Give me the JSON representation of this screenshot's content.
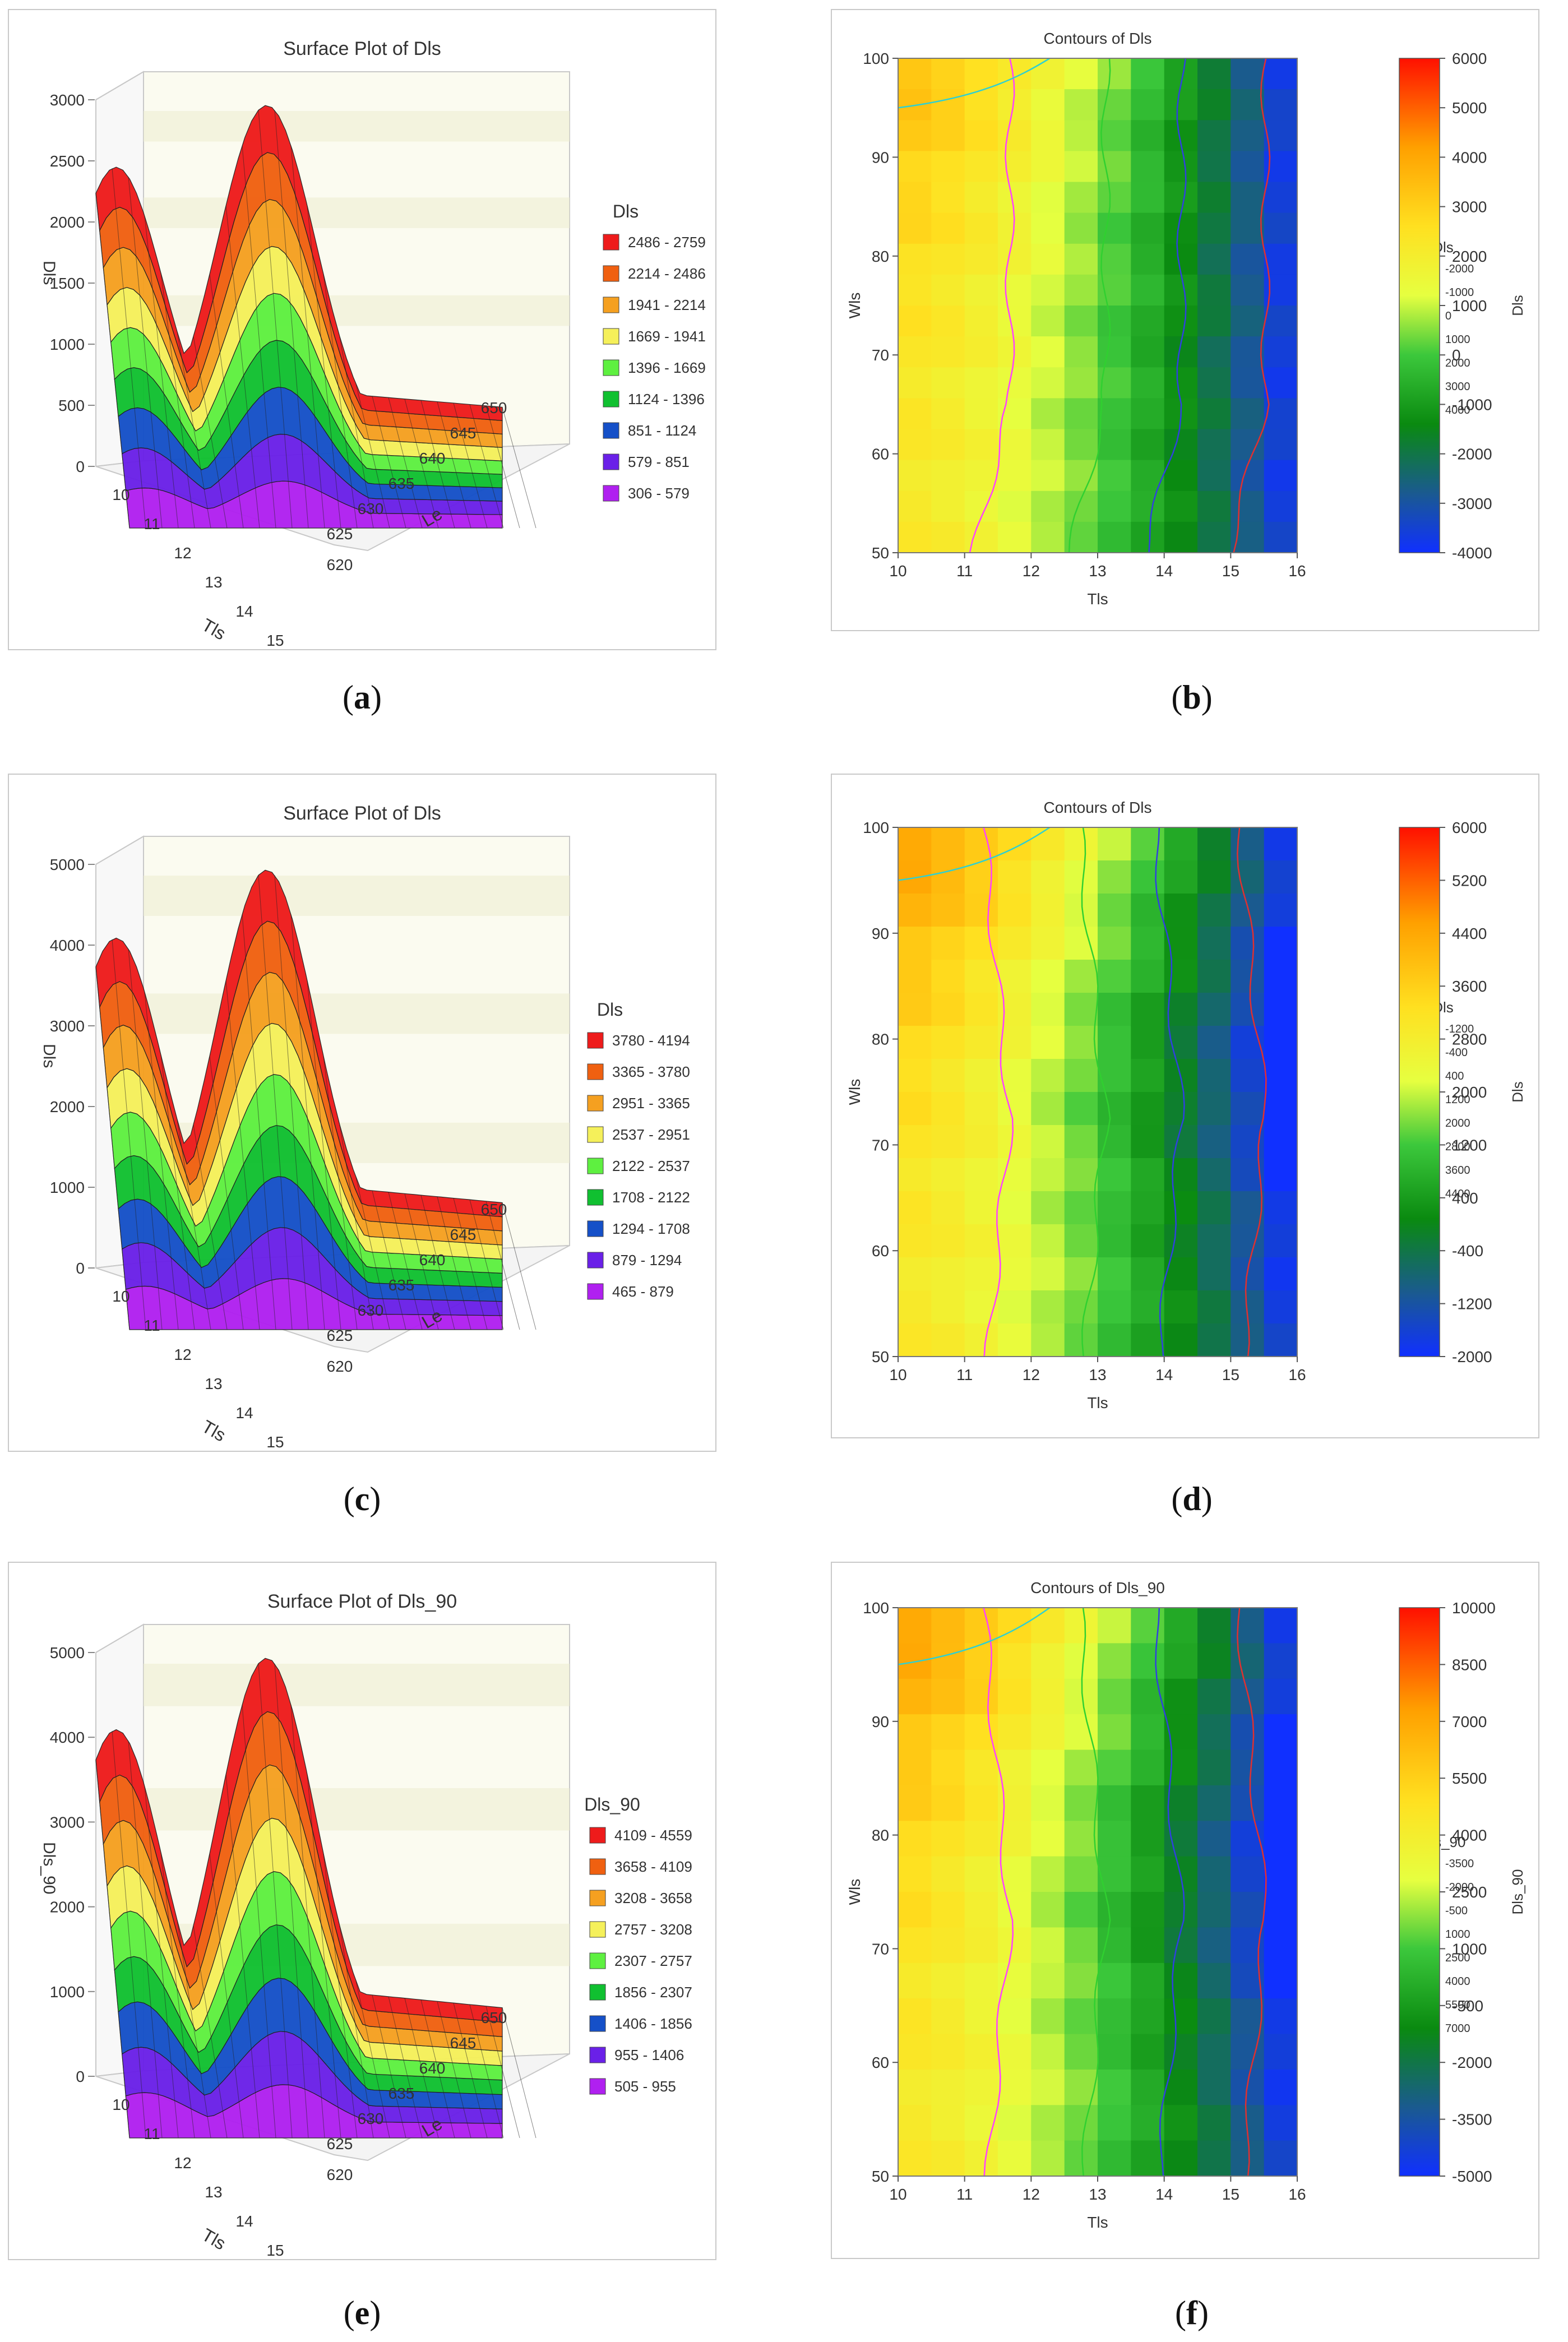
{
  "captions": {
    "a": "a",
    "b": "b",
    "c": "c",
    "d": "d",
    "e": "e",
    "f": "f"
  },
  "chart_data": [
    {
      "id": "a",
      "type": "surface3d",
      "title": "Surface Plot of Dls",
      "zlabel": "Dls",
      "xlabel": "Tls",
      "ylabel": "Le",
      "zticks": [
        "0",
        "500",
        "1000",
        "1500",
        "2000",
        "2500",
        "3000"
      ],
      "xticks": [
        "10",
        "11",
        "12",
        "13",
        "14",
        "15"
      ],
      "yticks": [
        "625",
        "630",
        "635",
        "640",
        "645",
        "650"
      ],
      "corner_label": "620",
      "legend_title": "Dls",
      "legend": [
        "2486 - 2759",
        "2214 - 2486",
        "1941 - 2214",
        "1669 - 1941",
        "1396 - 1669",
        "1124 - 1396",
        "851 - 1124",
        "579 - 851",
        "306 - 579"
      ],
      "legend_colors": [
        "#ee1b1b",
        "#f06010",
        "#f5a020",
        "#f5f05a",
        "#5ef040",
        "#10c030",
        "#1550c8",
        "#6a20e8",
        "#b020f0"
      ]
    },
    {
      "id": "b",
      "type": "contour",
      "title": "Contours of Dls",
      "xlabel": "Tls",
      "ylabel": "Wls",
      "cbar_label": "Dls",
      "xticks": [
        "10",
        "11",
        "12",
        "13",
        "14",
        "15",
        "16"
      ],
      "yticks": [
        "50",
        "60",
        "70",
        "80",
        "90",
        "100"
      ],
      "cbar_ticks": [
        "6000",
        "5000",
        "4000",
        "3000",
        "2000",
        "1000",
        "0",
        "-1000",
        "-2000",
        "-3000",
        "-4000"
      ],
      "legend_title": "Dls",
      "legend": [
        "-2000",
        "-1000",
        "0",
        "1000",
        "2000",
        "3000",
        "4000"
      ],
      "legend_colors": [
        "#e03030",
        "#3040e0",
        "#30d030",
        "#ff40ff",
        "#f0a030",
        "#f0f040",
        "#30d0d0"
      ]
    },
    {
      "id": "c",
      "type": "surface3d",
      "title": "Surface Plot of Dls",
      "zlabel": "Dls",
      "xlabel": "Tls",
      "ylabel": "Le",
      "zticks": [
        "0",
        "1000",
        "2000",
        "3000",
        "4000",
        "5000"
      ],
      "xticks": [
        "10",
        "11",
        "12",
        "13",
        "14",
        "15"
      ],
      "yticks": [
        "625",
        "630",
        "635",
        "640",
        "645",
        "650"
      ],
      "corner_label": "620",
      "legend_title": "Dls",
      "legend": [
        "3780 - 4194",
        "3365 - 3780",
        "2951 - 3365",
        "2537 - 2951",
        "2122 - 2537",
        "1708 - 2122",
        "1294 - 1708",
        "879 - 1294",
        "465 - 879"
      ],
      "legend_colors": [
        "#ee1b1b",
        "#f06010",
        "#f5a020",
        "#f5f05a",
        "#5ef040",
        "#10c030",
        "#1550c8",
        "#6a20e8",
        "#b020f0"
      ]
    },
    {
      "id": "d",
      "type": "contour",
      "title": "Contours of Dls",
      "xlabel": "Tls",
      "ylabel": "Wls",
      "cbar_label": "Dls",
      "xticks": [
        "10",
        "11",
        "12",
        "13",
        "14",
        "15",
        "16"
      ],
      "yticks": [
        "50",
        "60",
        "70",
        "80",
        "90",
        "100"
      ],
      "cbar_ticks": [
        "6000",
        "5200",
        "4400",
        "3600",
        "2800",
        "2000",
        "1200",
        "400",
        "-400",
        "-1200",
        "-2000"
      ],
      "legend_title": "Dls",
      "legend": [
        "-1200",
        "-400",
        "400",
        "1200",
        "2000",
        "2800",
        "3600",
        "4400"
      ],
      "legend_colors": [
        "#e03030",
        "#3040e0",
        "#30d030",
        "#ff40ff",
        "#f0a030",
        "#f0f040",
        "#30d0d0",
        "#ff60ff"
      ]
    },
    {
      "id": "e",
      "type": "surface3d",
      "title": "Surface Plot of Dls_90",
      "zlabel": "Dls_90",
      "xlabel": "Tls",
      "ylabel": "Le",
      "zticks": [
        "0",
        "1000",
        "2000",
        "3000",
        "4000",
        "5000"
      ],
      "xticks": [
        "10",
        "11",
        "12",
        "13",
        "14",
        "15"
      ],
      "yticks": [
        "625",
        "630",
        "635",
        "640",
        "645",
        "650"
      ],
      "corner_label": "620",
      "legend_title": "Dls_90",
      "legend": [
        "4109 - 4559",
        "3658 - 4109",
        "3208 - 3658",
        "2757 - 3208",
        "2307 - 2757",
        "1856 - 2307",
        "1406 - 1856",
        "955 - 1406",
        "505 - 955"
      ],
      "legend_colors": [
        "#ee1b1b",
        "#f06010",
        "#f5a020",
        "#f5f05a",
        "#5ef040",
        "#10c030",
        "#1550c8",
        "#6a20e8",
        "#b020f0"
      ]
    },
    {
      "id": "f",
      "type": "contour",
      "title": "Contours of Dls_90",
      "xlabel": "Tls",
      "ylabel": "Wls",
      "cbar_label": "Dls_90",
      "xticks": [
        "10",
        "11",
        "12",
        "13",
        "14",
        "15",
        "16"
      ],
      "yticks": [
        "50",
        "60",
        "70",
        "80",
        "90",
        "100"
      ],
      "cbar_ticks": [
        "10000",
        "8500",
        "7000",
        "5500",
        "4000",
        "2500",
        "1000",
        "-500",
        "-2000",
        "-3500",
        "-5000"
      ],
      "legend_title": "Dls_90",
      "legend": [
        "-3500",
        "-2000",
        "-500",
        "1000",
        "2500",
        "4000",
        "5500",
        "7000"
      ],
      "legend_colors": [
        "#e03030",
        "#3040e0",
        "#30d030",
        "#ff40ff",
        "#f0a030",
        "#f0f040",
        "#30d0d0",
        "#ff60ff"
      ]
    }
  ]
}
